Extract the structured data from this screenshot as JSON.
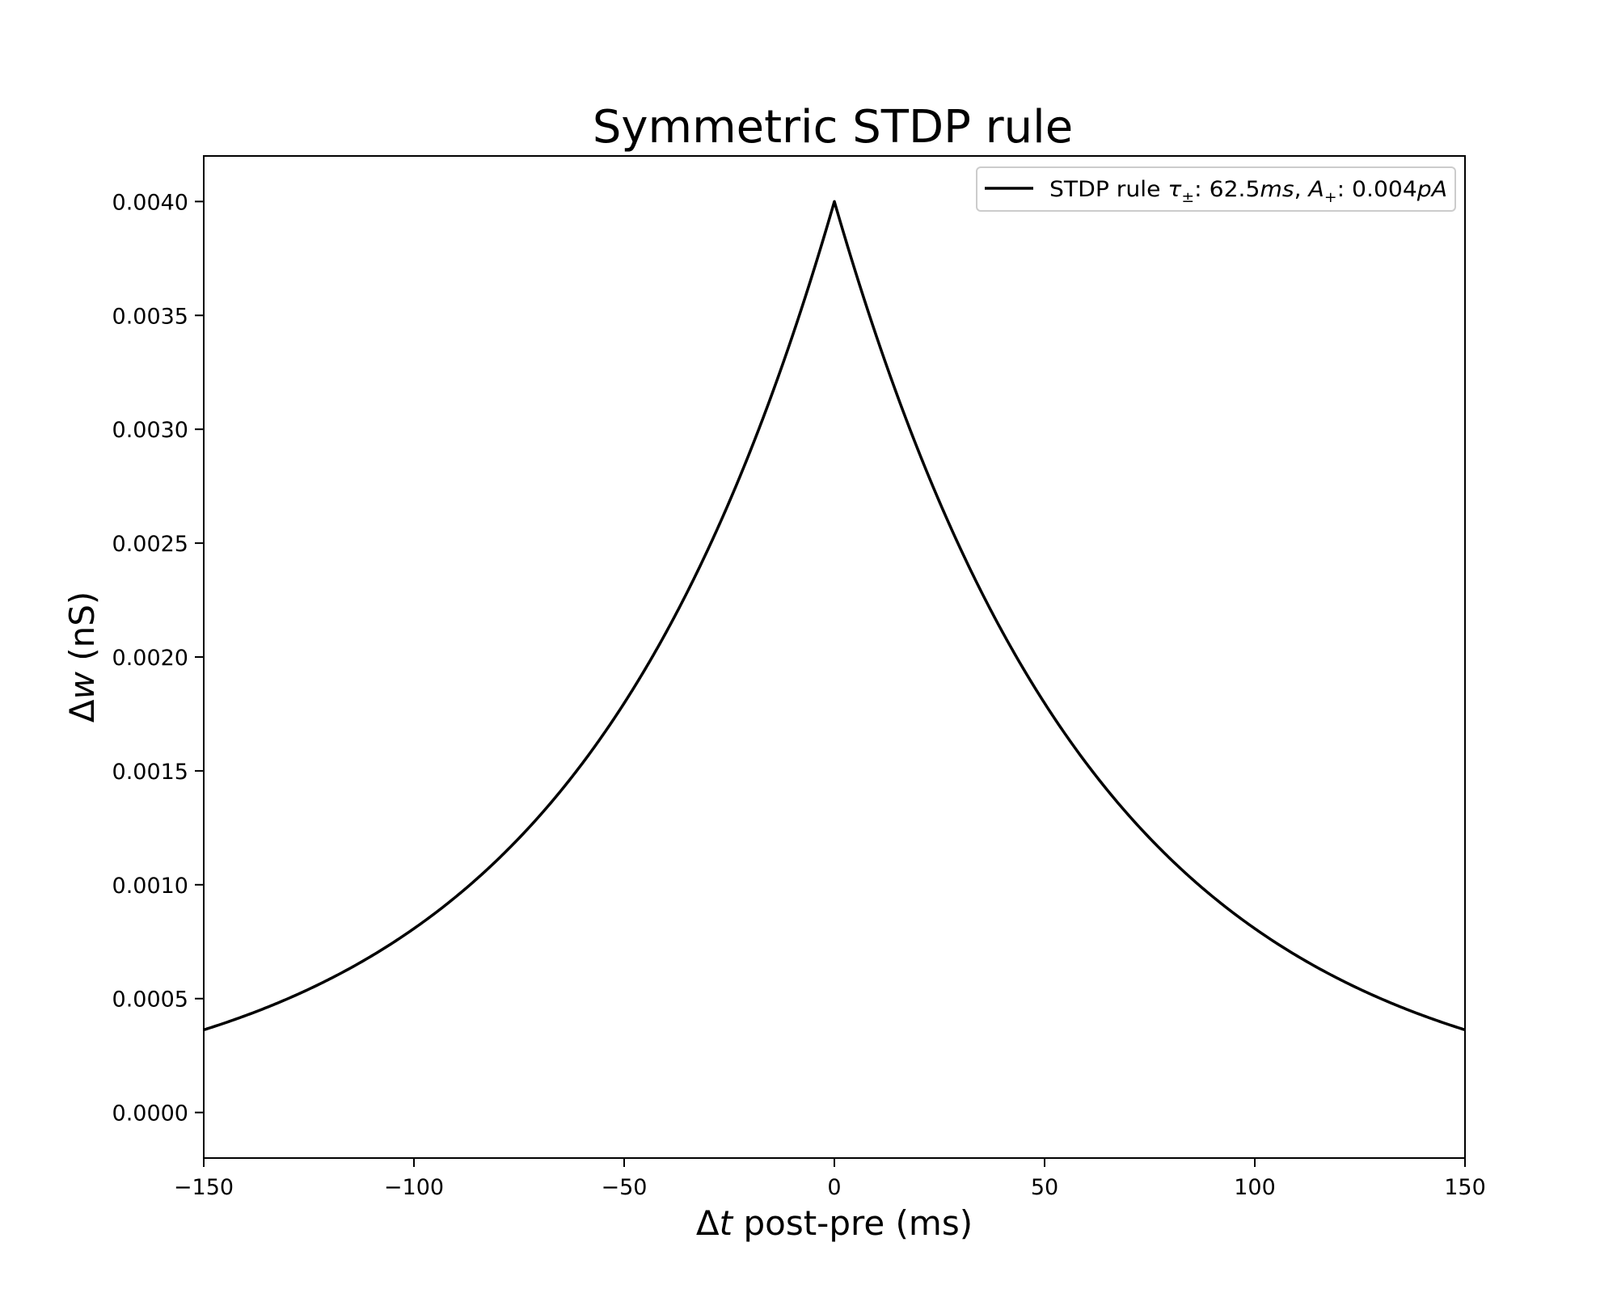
{
  "chart_data": {
    "type": "line",
    "title": "Symmetric STDP rule",
    "xlabel": {
      "symbol": "Δ",
      "var": "t",
      "rest": " post-pre (ms)"
    },
    "ylabel": {
      "symbol": "Δ",
      "var": "w",
      "rest": " (nS)"
    },
    "xlim": [
      -150,
      150
    ],
    "ylim": [
      -0.0002,
      0.0042
    ],
    "xticks": [
      -150,
      -100,
      -50,
      0,
      50,
      100,
      150
    ],
    "xtick_labels": [
      "−150",
      "−100",
      "−50",
      "0",
      "50",
      "100",
      "150"
    ],
    "yticks": [
      0.0,
      0.0005,
      0.001,
      0.0015,
      0.002,
      0.0025,
      0.003,
      0.0035,
      0.004
    ],
    "ytick_labels": [
      "0.0000",
      "0.0005",
      "0.0010",
      "0.0015",
      "0.0020",
      "0.0025",
      "0.0030",
      "0.0035",
      "0.0040"
    ],
    "grid": false,
    "legend_position": "top-right",
    "series": [
      {
        "name": "STDP rule τ±: 62.5ms, A+: 0.004pA",
        "legend_parts": {
          "prefix": "STDP rule ",
          "tau": "τ",
          "tau_sub": "±",
          "tau_value": ": 62.5",
          "tau_unit": "ms",
          "sep": ", ",
          "amp": "A",
          "amp_sub": "+",
          "amp_value": ": 0.004",
          "amp_unit": "pA"
        },
        "color": "#000000",
        "function": "A * exp(-|x| / tau)",
        "A": 0.004,
        "tau": 62.5,
        "x": [
          -150,
          -125,
          -100,
          -75,
          -50,
          -25,
          0,
          25,
          50,
          75,
          100,
          125,
          150
        ],
        "y": [
          0.000363,
          0.000541,
          0.000808,
          0.001205,
          0.001797,
          0.002681,
          0.004,
          0.002681,
          0.001797,
          0.001205,
          0.000808,
          0.000541,
          0.000363
        ]
      }
    ]
  }
}
